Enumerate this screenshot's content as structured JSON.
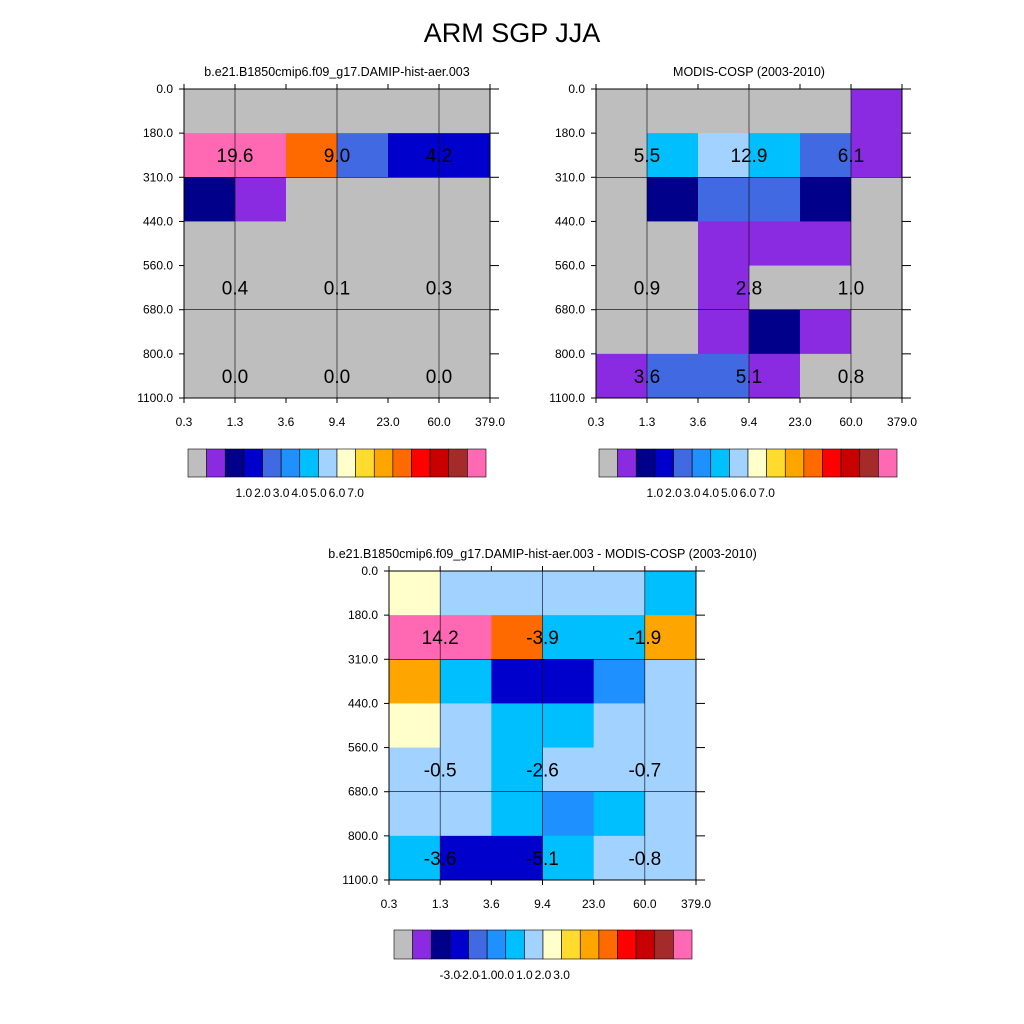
{
  "title": "ARM SGP JJA",
  "palette": {
    "gray": "#bebebe",
    "purple": "#8a2be2",
    "navy": "#00008b",
    "mediumblue": "#0000cd",
    "royalblue": "#4169e1",
    "dodgerblue": "#1e90ff",
    "deepskyblue": "#00bfff",
    "lightskyblue": "#a2d2ff",
    "lightyellow": "#ffffcc",
    "gold": "#ffdb2d",
    "orange": "#ffa500",
    "darkorange": "#ff6a00",
    "red": "#ff0000",
    "darkred": "#c80000",
    "brown": "#a52a2a",
    "pink": "#ff69b4"
  },
  "chart_data": [
    {
      "type": "heatmap",
      "title": "b.e21.B1850cmip6.f09_g17.DAMIP-hist-aer.003",
      "x_ticks": [
        "0.3",
        "1.3",
        "3.6",
        "9.4",
        "23.0",
        "60.0",
        "379.0"
      ],
      "y_ticks": [
        "0.0",
        "180.0",
        "310.0",
        "440.0",
        "560.0",
        "680.0",
        "800.0",
        "1100.0"
      ],
      "cells": [
        [
          "gray",
          "gray",
          "gray",
          "gray",
          "gray",
          "gray"
        ],
        [
          "pink",
          "pink",
          "darkorange",
          "royalblue",
          "mediumblue",
          "mediumblue"
        ],
        [
          "navy",
          "purple",
          "gray",
          "gray",
          "gray",
          "gray"
        ],
        [
          "gray",
          "gray",
          "gray",
          "gray",
          "gray",
          "gray"
        ],
        [
          "gray",
          "gray",
          "gray",
          "gray",
          "gray",
          "gray"
        ],
        [
          "gray",
          "gray",
          "gray",
          "gray",
          "gray",
          "gray"
        ],
        [
          "gray",
          "gray",
          "gray",
          "gray",
          "gray",
          "gray"
        ]
      ],
      "annotations": [
        {
          "row": 1,
          "col": 0,
          "text": "19.6"
        },
        {
          "row": 1,
          "col": 1,
          "text": "9.0"
        },
        {
          "row": 1,
          "col": 2,
          "text": "4.2"
        },
        {
          "row": 4,
          "col": 0,
          "text": "0.4"
        },
        {
          "row": 4,
          "col": 1,
          "text": "0.1"
        },
        {
          "row": 4,
          "col": 2,
          "text": "0.3"
        },
        {
          "row": 6,
          "col": 0,
          "text": "0.0"
        },
        {
          "row": 6,
          "col": 1,
          "text": "0.0"
        },
        {
          "row": 6,
          "col": 2,
          "text": "0.0"
        }
      ],
      "colorbar": {
        "colors": [
          "gray",
          "purple",
          "navy",
          "mediumblue",
          "royalblue",
          "dodgerblue",
          "deepskyblue",
          "lightskyblue",
          "lightyellow",
          "gold",
          "orange",
          "darkorange",
          "red",
          "darkred",
          "brown",
          "pink"
        ],
        "labels": [
          "1.0",
          "2.0",
          "3.0",
          "4.0",
          "5.0",
          "6.0",
          "7.0"
        ]
      }
    },
    {
      "type": "heatmap",
      "title": "MODIS-COSP (2003-2010)",
      "x_ticks": [
        "0.3",
        "1.3",
        "3.6",
        "9.4",
        "23.0",
        "60.0",
        "379.0"
      ],
      "y_ticks": [
        "0.0",
        "180.0",
        "310.0",
        "440.0",
        "560.0",
        "680.0",
        "800.0",
        "1100.0"
      ],
      "cells": [
        [
          "gray",
          "gray",
          "gray",
          "gray",
          "gray",
          "purple"
        ],
        [
          "gray",
          "deepskyblue",
          "lightskyblue",
          "deepskyblue",
          "royalblue",
          "purple"
        ],
        [
          "gray",
          "navy",
          "royalblue",
          "royalblue",
          "navy",
          "gray"
        ],
        [
          "gray",
          "gray",
          "purple",
          "purple",
          "purple",
          "gray"
        ],
        [
          "gray",
          "gray",
          "purple",
          "gray",
          "gray",
          "gray"
        ],
        [
          "gray",
          "gray",
          "purple",
          "navy",
          "purple",
          "gray"
        ],
        [
          "purple",
          "royalblue",
          "royalblue",
          "purple",
          "gray",
          "gray"
        ]
      ],
      "annotations": [
        {
          "row": 1,
          "col": 0,
          "text": "5.5"
        },
        {
          "row": 1,
          "col": 1,
          "text": "12.9"
        },
        {
          "row": 1,
          "col": 2,
          "text": "6.1"
        },
        {
          "row": 4,
          "col": 0,
          "text": "0.9"
        },
        {
          "row": 4,
          "col": 1,
          "text": "2.8"
        },
        {
          "row": 4,
          "col": 2,
          "text": "1.0"
        },
        {
          "row": 6,
          "col": 0,
          "text": "3.6"
        },
        {
          "row": 6,
          "col": 1,
          "text": "5.1"
        },
        {
          "row": 6,
          "col": 2,
          "text": "0.8"
        }
      ],
      "colorbar": {
        "colors": [
          "gray",
          "purple",
          "navy",
          "mediumblue",
          "royalblue",
          "dodgerblue",
          "deepskyblue",
          "lightskyblue",
          "lightyellow",
          "gold",
          "orange",
          "darkorange",
          "red",
          "darkred",
          "brown",
          "pink"
        ],
        "labels": [
          "1.0",
          "2.0",
          "3.0",
          "4.0",
          "5.0",
          "6.0",
          "7.0"
        ]
      }
    },
    {
      "type": "heatmap",
      "title": "b.e21.B1850cmip6.f09_g17.DAMIP-hist-aer.003 - MODIS-COSP (2003-2010)",
      "x_ticks": [
        "0.3",
        "1.3",
        "3.6",
        "9.4",
        "23.0",
        "60.0",
        "379.0"
      ],
      "y_ticks": [
        "0.0",
        "180.0",
        "310.0",
        "440.0",
        "560.0",
        "680.0",
        "800.0",
        "1100.0"
      ],
      "cells": [
        [
          "lightyellow",
          "lightskyblue",
          "lightskyblue",
          "lightskyblue",
          "lightskyblue",
          "deepskyblue"
        ],
        [
          "pink",
          "pink",
          "darkorange",
          "deepskyblue",
          "deepskyblue",
          "orange"
        ],
        [
          "orange",
          "deepskyblue",
          "mediumblue",
          "mediumblue",
          "dodgerblue",
          "lightskyblue"
        ],
        [
          "lightyellow",
          "lightskyblue",
          "deepskyblue",
          "deepskyblue",
          "lightskyblue",
          "lightskyblue"
        ],
        [
          "lightskyblue",
          "lightskyblue",
          "deepskyblue",
          "lightskyblue",
          "lightskyblue",
          "lightskyblue"
        ],
        [
          "lightskyblue",
          "lightskyblue",
          "deepskyblue",
          "dodgerblue",
          "deepskyblue",
          "lightskyblue"
        ],
        [
          "deepskyblue",
          "mediumblue",
          "mediumblue",
          "deepskyblue",
          "lightskyblue",
          "lightskyblue"
        ]
      ],
      "annotations": [
        {
          "row": 1,
          "col": 0,
          "text": "14.2"
        },
        {
          "row": 1,
          "col": 1,
          "text": "-3.9"
        },
        {
          "row": 1,
          "col": 2,
          "text": "-1.9"
        },
        {
          "row": 4,
          "col": 0,
          "text": "-0.5"
        },
        {
          "row": 4,
          "col": 1,
          "text": "-2.6"
        },
        {
          "row": 4,
          "col": 2,
          "text": "-0.7"
        },
        {
          "row": 6,
          "col": 0,
          "text": "-3.6"
        },
        {
          "row": 6,
          "col": 1,
          "text": "-5.1"
        },
        {
          "row": 6,
          "col": 2,
          "text": "-0.8"
        }
      ],
      "colorbar": {
        "colors": [
          "gray",
          "purple",
          "navy",
          "mediumblue",
          "royalblue",
          "dodgerblue",
          "deepskyblue",
          "lightskyblue",
          "lightyellow",
          "gold",
          "orange",
          "darkorange",
          "red",
          "darkred",
          "brown",
          "pink"
        ],
        "labels": [
          "-3.0",
          "-2.0",
          "-1.0",
          "0.0",
          "1.0",
          "2.0",
          "3.0"
        ]
      }
    }
  ]
}
